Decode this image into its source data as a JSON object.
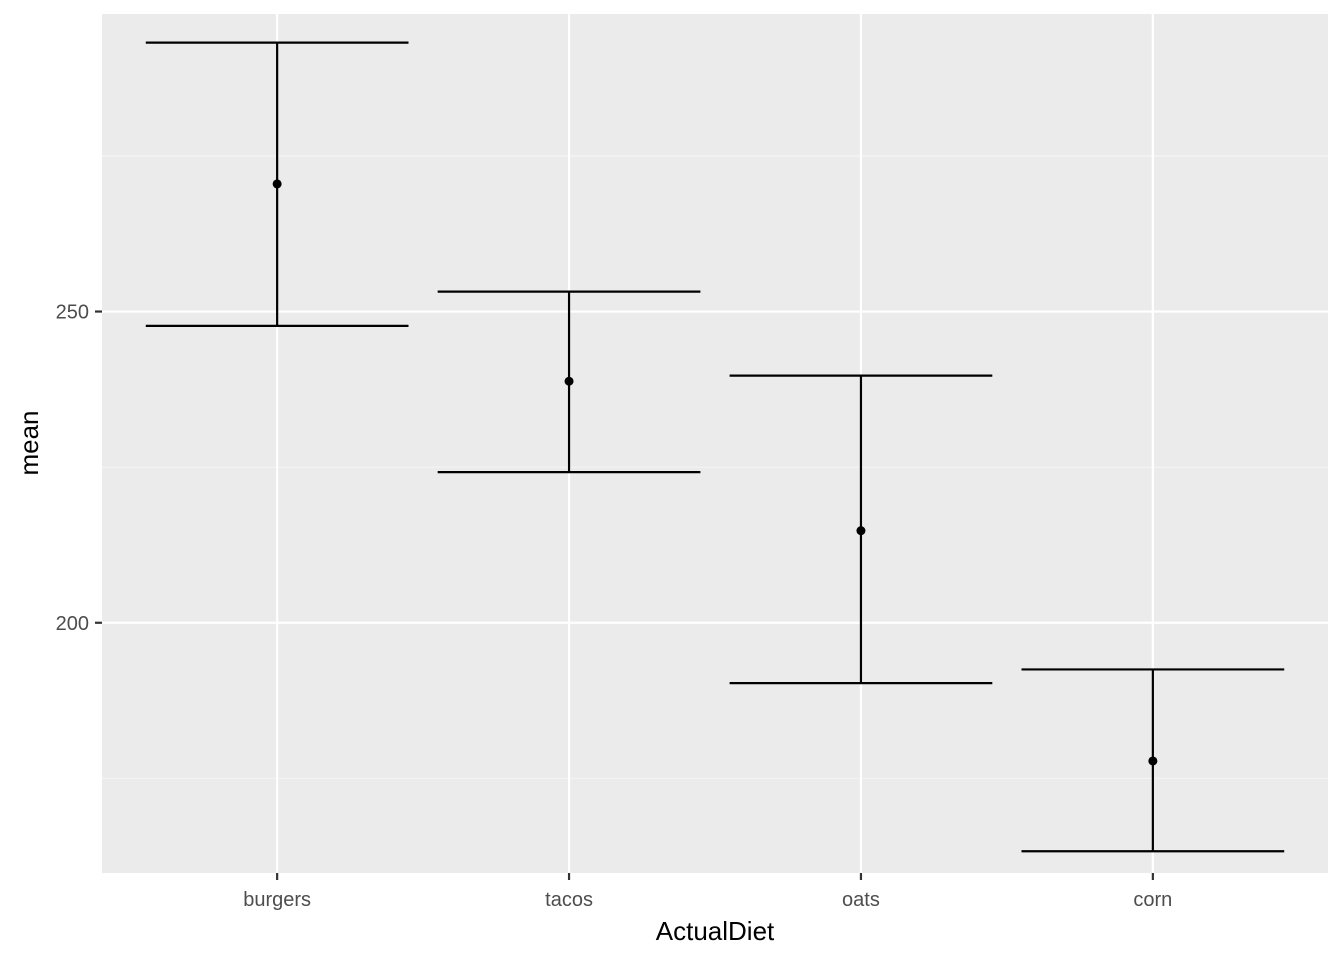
{
  "chart_data": {
    "type": "errorbar",
    "title": "",
    "xlabel": "ActualDiet",
    "ylabel": "mean",
    "categories": [
      "burgers",
      "tacos",
      "oats",
      "corn"
    ],
    "mean": [
      270.5,
      238.8,
      214.8,
      177.8
    ],
    "lower": [
      247.7,
      224.2,
      190.3,
      163.3
    ],
    "upper": [
      293.2,
      253.2,
      239.7,
      192.5
    ],
    "ylim": [
      159.8,
      297.8
    ],
    "y_ticks": [
      200,
      250
    ],
    "y_minor_ticks": [
      175,
      225,
      275
    ],
    "grid": true,
    "legend": "none",
    "colors": {
      "panel_background": "#ebebeb",
      "grid_major": "#ffffff",
      "grid_minor": "#f5f5f5",
      "marks": "#000000",
      "tick_text": "#4d4d4d"
    }
  }
}
